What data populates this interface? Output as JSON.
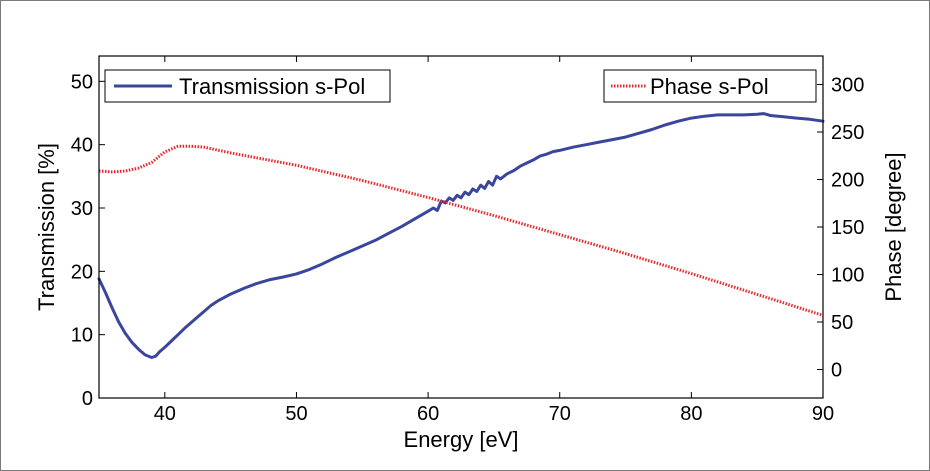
{
  "chart_data": {
    "type": "line",
    "xlabel": "Energy [eV]",
    "ylabel_left": "Transmission [%]",
    "ylabel_right": "Phase [degree]",
    "xlim": [
      35,
      90
    ],
    "ylim_left": [
      0,
      54
    ],
    "ylim_right": [
      -30,
      330
    ],
    "x_ticks": [
      40,
      50,
      60,
      70,
      80,
      90
    ],
    "y_ticks_left": [
      0,
      10,
      20,
      30,
      40,
      50
    ],
    "y_ticks_right": [
      0,
      50,
      100,
      150,
      200,
      250,
      300
    ],
    "grid": false,
    "legend": [
      {
        "label": "Transmission s-Pol",
        "position": "top-left"
      },
      {
        "label": "Phase s-Pol",
        "position": "top-right"
      }
    ],
    "series": [
      {
        "name": "Transmission s-Pol",
        "axis": "left",
        "color": "#3a469e",
        "style": "solid",
        "x": [
          35,
          35.5,
          36,
          36.5,
          37,
          37.5,
          38,
          38.5,
          39,
          39.3,
          39.6,
          40,
          40.5,
          41,
          41.5,
          42,
          42.5,
          43,
          43.5,
          44,
          45,
          46,
          47,
          48,
          49,
          50,
          51,
          52,
          53,
          54,
          55,
          56,
          57,
          58,
          59,
          60,
          60.4,
          60.7,
          61,
          61.3,
          61.6,
          61.9,
          62.2,
          62.5,
          62.8,
          63.1,
          63.4,
          63.7,
          64,
          64.3,
          64.6,
          64.9,
          65.2,
          65.5,
          66,
          66.5,
          67,
          67.5,
          68,
          68.5,
          69,
          69.5,
          70,
          71,
          72,
          73,
          74,
          75,
          76,
          77,
          78,
          79,
          80,
          81,
          82,
          83,
          84,
          85,
          85.5,
          86,
          87,
          88,
          89,
          90
        ],
        "values": [
          18.8,
          16.6,
          14.2,
          12.0,
          10.2,
          8.8,
          7.7,
          6.8,
          6.4,
          6.6,
          7.3,
          8.0,
          9.0,
          10.0,
          11.0,
          11.9,
          12.8,
          13.7,
          14.6,
          15.3,
          16.4,
          17.3,
          18.1,
          18.7,
          19.1,
          19.6,
          20.3,
          21.2,
          22.2,
          23.1,
          24.0,
          24.9,
          26.0,
          27.1,
          28.3,
          29.5,
          30.0,
          29.6,
          31.1,
          30.8,
          31.6,
          31.2,
          32.0,
          31.6,
          32.5,
          32.1,
          33.0,
          32.6,
          33.6,
          33.1,
          34.2,
          33.6,
          35.0,
          34.6,
          35.4,
          35.9,
          36.6,
          37.1,
          37.6,
          38.2,
          38.5,
          38.9,
          39.1,
          39.6,
          40.0,
          40.4,
          40.8,
          41.2,
          41.8,
          42.4,
          43.1,
          43.7,
          44.2,
          44.5,
          44.7,
          44.7,
          44.7,
          44.8,
          44.9,
          44.6,
          44.4,
          44.2,
          44.0,
          43.7
        ]
      },
      {
        "name": "Phase s-Pol",
        "axis": "right",
        "color": "#e8272a",
        "style": "dotted",
        "x": [
          35,
          36,
          37,
          38,
          39,
          40,
          41,
          42,
          43,
          44,
          45,
          50,
          55,
          60,
          65,
          70,
          75,
          80,
          85,
          90
        ],
        "values": [
          209,
          208,
          209,
          212,
          218,
          229,
          235,
          235,
          234,
          231,
          228,
          215,
          199,
          181,
          162,
          142,
          122,
          101,
          79,
          57
        ]
      }
    ]
  }
}
